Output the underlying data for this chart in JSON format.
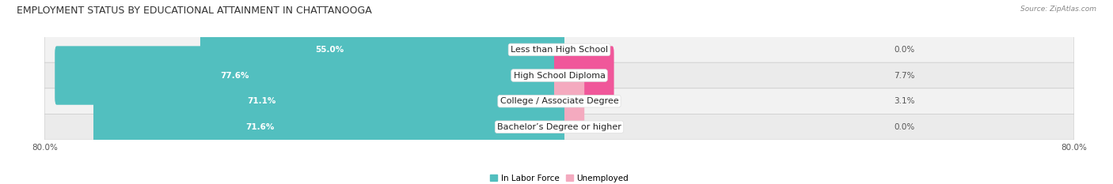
{
  "title": "EMPLOYMENT STATUS BY EDUCATIONAL ATTAINMENT IN CHATTANOOGA",
  "source": "Source: ZipAtlas.com",
  "categories": [
    "Less than High School",
    "High School Diploma",
    "College / Associate Degree",
    "Bachelor’s Degree or higher"
  ],
  "labor_force": [
    55.0,
    77.6,
    71.1,
    71.6
  ],
  "unemployed": [
    0.0,
    7.7,
    3.1,
    0.0
  ],
  "max_value": 80.0,
  "labor_force_color": "#52BFBF",
  "unemployed_color_row": [
    "#F4AABF",
    "#F0579A",
    "#F4AABF",
    "#F4AABF"
  ],
  "row_bg_light": "#F4F4F4",
  "row_bg_dark": "#EAEAEA",
  "title_fontsize": 9.0,
  "label_fontsize": 8.0,
  "bar_label_fontsize": 7.5,
  "axis_fontsize": 7.5,
  "legend_fontsize": 7.5
}
